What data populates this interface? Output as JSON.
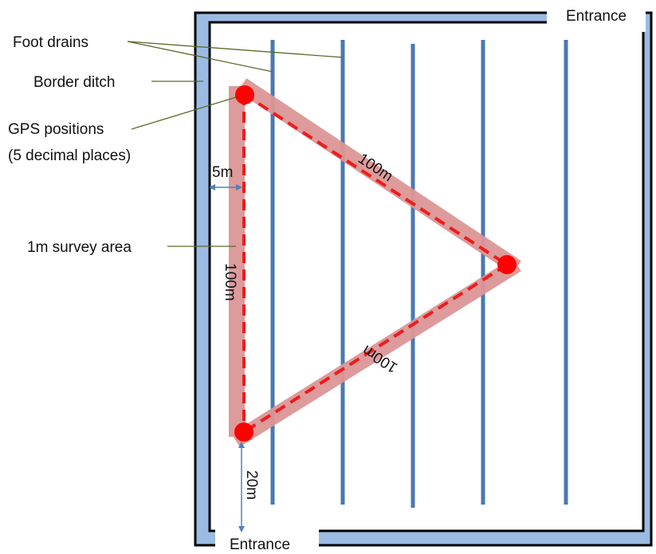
{
  "labels": {
    "foot_drains": "Foot drains",
    "border_ditch": "Border ditch",
    "gps_positions_line1": "GPS positions",
    "gps_positions_line2": "(5 decimal places)",
    "survey_area": "1m survey area",
    "five_m": "5m",
    "twenty_m": "20m",
    "side_left": "100m",
    "side_top": "100m",
    "side_bottom": "100m",
    "entrance_top": "Entrance",
    "entrance_bottom": "Entrance"
  },
  "colors": {
    "ditch": "#9bbbe3",
    "outline": "#000000",
    "drain": "#4a78b2",
    "survey_band": "#dc9696",
    "transect": "#ee1c1c",
    "gps_point": "#ff0000",
    "leader": "#5a6a2a",
    "arrow": "#4f81bd"
  }
}
